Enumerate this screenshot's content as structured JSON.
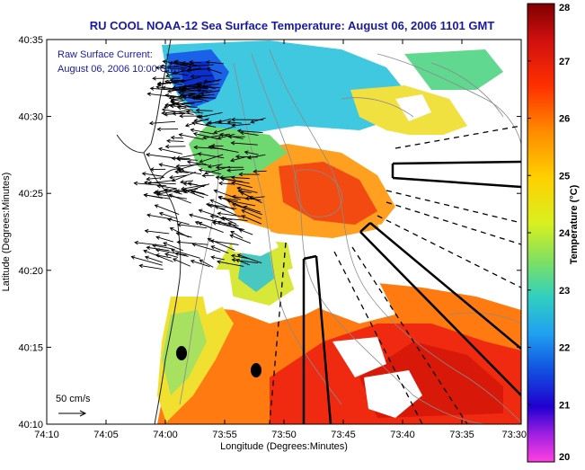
{
  "title": "RU COOL  NOAA-12  Sea Surface Temperature:  August 06, 2006 1101 GMT",
  "legend_current": {
    "line1": "Raw Surface Current:",
    "line2": "August 06, 2006 10:00 GMT"
  },
  "scale_label": "50 cm/s",
  "axes": {
    "xlabel": "Longitude (Degrees:Minutes)",
    "ylabel": "Latitude (Degrees:Minutes)",
    "xticks": [
      "74:10",
      "74:05",
      "74:00",
      "73:55",
      "73:50",
      "73:45",
      "73:40",
      "73:35",
      "73:30"
    ],
    "yticks": [
      "40:35",
      "40:30",
      "40:25",
      "40:20",
      "40:15",
      "40:10"
    ]
  },
  "colorbar": {
    "label": "Temperature (°C)",
    "ticks": [
      "28",
      "27",
      "26",
      "25",
      "24",
      "23",
      "22",
      "21",
      "20"
    ],
    "min": 20,
    "max": 28
  },
  "colors": {
    "title": "#1a1aa0",
    "legend_text": "#1a1aa0"
  }
}
